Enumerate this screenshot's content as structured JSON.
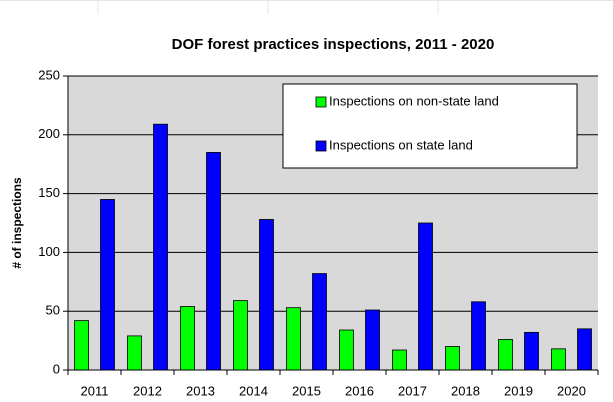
{
  "chart_data": {
    "type": "bar",
    "title": "DOF forest practices inspections, 2011 - 2020",
    "y_label": "# of inspections",
    "categories": [
      "2011",
      "2012",
      "2013",
      "2014",
      "2015",
      "2016",
      "2017",
      "2018",
      "2019",
      "2020"
    ],
    "series": [
      {
        "name": "Inspections on non-state land",
        "color": "#00ff00",
        "values": [
          42,
          29,
          54,
          59,
          53,
          34,
          17,
          20,
          26,
          18
        ]
      },
      {
        "name": "Inspections on state land",
        "color": "#0000ff",
        "values": [
          145,
          209,
          185,
          128,
          82,
          51,
          125,
          58,
          32,
          35
        ]
      }
    ],
    "ylim": [
      0,
      250
    ],
    "yticks": [
      0,
      50,
      100,
      150,
      200,
      250
    ],
    "grid": true,
    "legend": "upper right"
  }
}
